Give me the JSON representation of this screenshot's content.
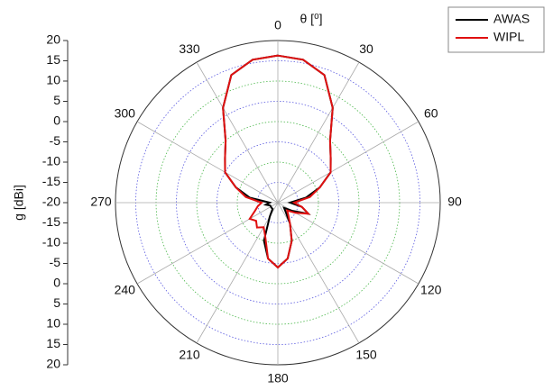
{
  "chart_data": {
    "type": "polar",
    "angle_label": "θ [⁰]",
    "radial_label": "g [dBi]",
    "theta": [
      0,
      10,
      20,
      30,
      40,
      50,
      60,
      70,
      80,
      90,
      100,
      110,
      120,
      130,
      140,
      150,
      160,
      170,
      180,
      190,
      200,
      210,
      220,
      230,
      240,
      250,
      260,
      270,
      280,
      290,
      300,
      310,
      320,
      330,
      340,
      350
    ],
    "series": [
      {
        "name": "AWAS",
        "color": "#000000",
        "values": [
          16.3,
          15.8,
          13.5,
          7,
          0,
          -3,
          -5,
          -9,
          -13,
          -17,
          -14,
          -12,
          -16,
          -18,
          -17,
          -14,
          -10,
          -6,
          -4,
          -6,
          -10,
          -16,
          -18,
          -18,
          -18,
          -18,
          -17,
          -18,
          -13,
          -9,
          -5,
          -3,
          0,
          7,
          13.5,
          15.8
        ]
      },
      {
        "name": "WIPL",
        "color": "#e01010",
        "values": [
          16.3,
          15.8,
          13.5,
          7,
          0,
          -3,
          -5,
          -9,
          -12,
          -16,
          -14,
          -12,
          -15,
          -17,
          -16,
          -14,
          -10,
          -6,
          -4,
          -6,
          -11,
          -13,
          -12,
          -13,
          -12,
          -14,
          -15,
          -16,
          -12,
          -9,
          -5,
          -3,
          0,
          7,
          13.5,
          15.8
        ]
      }
    ],
    "angle_ticks": [
      0,
      30,
      60,
      90,
      120,
      150,
      180,
      210,
      240,
      270,
      300,
      330
    ],
    "rlim": [
      -20,
      20
    ],
    "rticks": [
      -20,
      -15,
      -10,
      -5,
      0,
      5,
      10,
      15,
      20
    ],
    "grid": true,
    "legend": "upper right"
  }
}
